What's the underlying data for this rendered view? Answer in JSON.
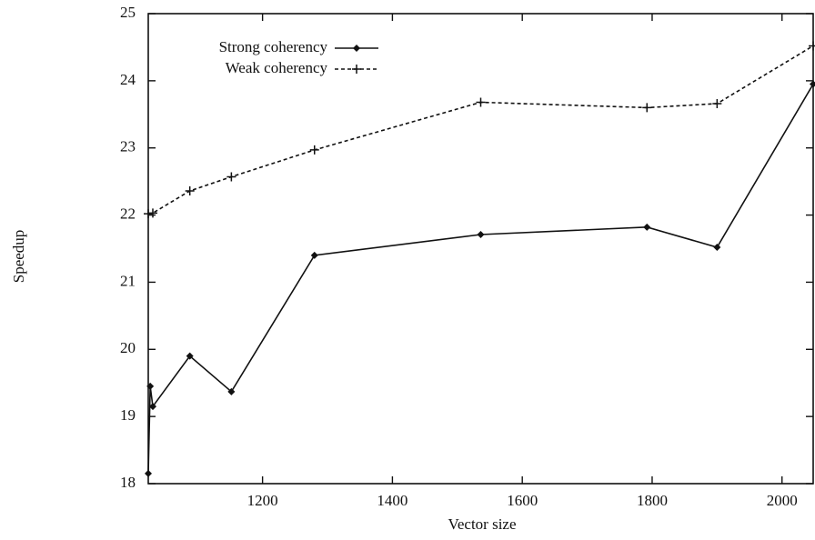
{
  "chart_data": {
    "type": "line",
    "xlabel": "Vector size",
    "ylabel": "Speedup",
    "xlim": [
      1024,
      2048
    ],
    "xticks": [
      1200,
      1400,
      1600,
      1800,
      2000
    ],
    "ylim": [
      18,
      25
    ],
    "yticks": [
      18,
      19,
      20,
      21,
      22,
      23,
      24,
      25
    ],
    "legend": "upper left",
    "series": [
      {
        "name": "Strong coherency",
        "color": "#111111",
        "marker": "diamond",
        "dash": "solid",
        "x": [
          1024,
          1027,
          1031,
          1088,
          1152,
          1280,
          1536,
          1792,
          1900,
          2048
        ],
        "values": [
          18.15,
          19.45,
          19.15,
          19.9,
          19.37,
          21.4,
          21.71,
          21.82,
          21.52,
          23.95
        ]
      },
      {
        "name": "Weak coherency",
        "color": "#111111",
        "marker": "plus",
        "dash": "dashed",
        "x": [
          1024,
          1031,
          1088,
          1152,
          1280,
          1536,
          1792,
          1900,
          2048
        ],
        "values": [
          22.02,
          22.03,
          22.36,
          22.57,
          22.97,
          23.68,
          23.6,
          23.66,
          24.52
        ]
      }
    ]
  }
}
